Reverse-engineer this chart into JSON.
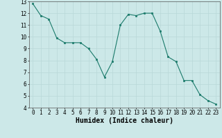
{
  "x": [
    0,
    1,
    2,
    3,
    4,
    5,
    6,
    7,
    8,
    9,
    10,
    11,
    12,
    13,
    14,
    15,
    16,
    17,
    18,
    19,
    20,
    21,
    22,
    23
  ],
  "y": [
    12.8,
    11.8,
    11.5,
    9.9,
    9.5,
    9.5,
    9.5,
    9.0,
    8.1,
    6.6,
    7.9,
    11.0,
    11.9,
    11.8,
    12.0,
    12.0,
    10.5,
    8.3,
    7.9,
    6.3,
    6.3,
    5.1,
    4.6,
    4.3
  ],
  "xlabel": "Humidex (Indice chaleur)",
  "ylim": [
    4,
    13
  ],
  "xlim": [
    -0.5,
    23.5
  ],
  "yticks": [
    4,
    5,
    6,
    7,
    8,
    9,
    10,
    11,
    12,
    13
  ],
  "xticks": [
    0,
    1,
    2,
    3,
    4,
    5,
    6,
    7,
    8,
    9,
    10,
    11,
    12,
    13,
    14,
    15,
    16,
    17,
    18,
    19,
    20,
    21,
    22,
    23
  ],
  "line_color": "#1a7a6a",
  "marker_color": "#1a7a6a",
  "bg_color": "#cce8e8",
  "grid_color": "#b8d8d8",
  "tick_label_fontsize": 5.5,
  "xlabel_fontsize": 7
}
